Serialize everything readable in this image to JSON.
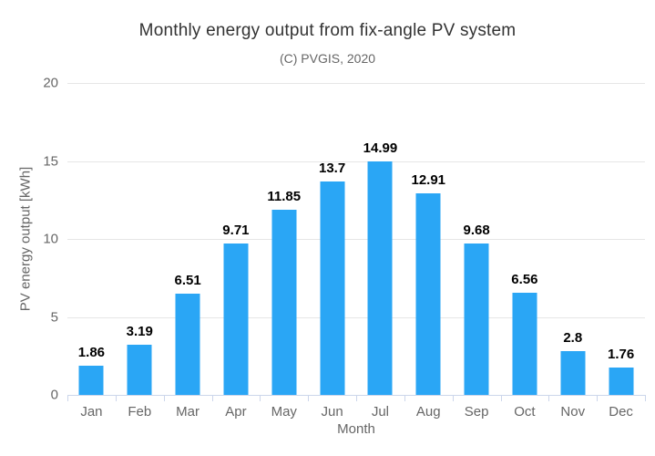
{
  "chart_data": {
    "type": "bar",
    "title": "Monthly energy output from fix-angle PV system",
    "subtitle": "(C) PVGIS, 2020",
    "categories": [
      "Jan",
      "Feb",
      "Mar",
      "Apr",
      "May",
      "Jun",
      "Jul",
      "Aug",
      "Sep",
      "Oct",
      "Nov",
      "Dec"
    ],
    "values": [
      1.86,
      3.19,
      6.51,
      9.71,
      11.85,
      13.7,
      14.99,
      12.91,
      9.68,
      6.56,
      2.8,
      1.76
    ],
    "data_labels": [
      "1.86",
      "3.19",
      "6.51",
      "9.71",
      "11.85",
      "13.7",
      "14.99",
      "12.91",
      "9.68",
      "6.56",
      "2.8",
      "1.76"
    ],
    "xlabel": "Month",
    "ylabel": "PV energy output [kWh]",
    "ylim": [
      0,
      20
    ],
    "yticks": [
      0,
      5,
      10,
      15,
      20
    ],
    "grid": true,
    "legend": "none",
    "colors": {
      "bar": "#2aa6f5",
      "gridline": "#e6e6e6",
      "axis_line": "#ccd6eb",
      "axis_label": "#666666",
      "title": "#333333",
      "subtitle": "#666666",
      "data_label": "#000000",
      "background": "#ffffff"
    }
  }
}
